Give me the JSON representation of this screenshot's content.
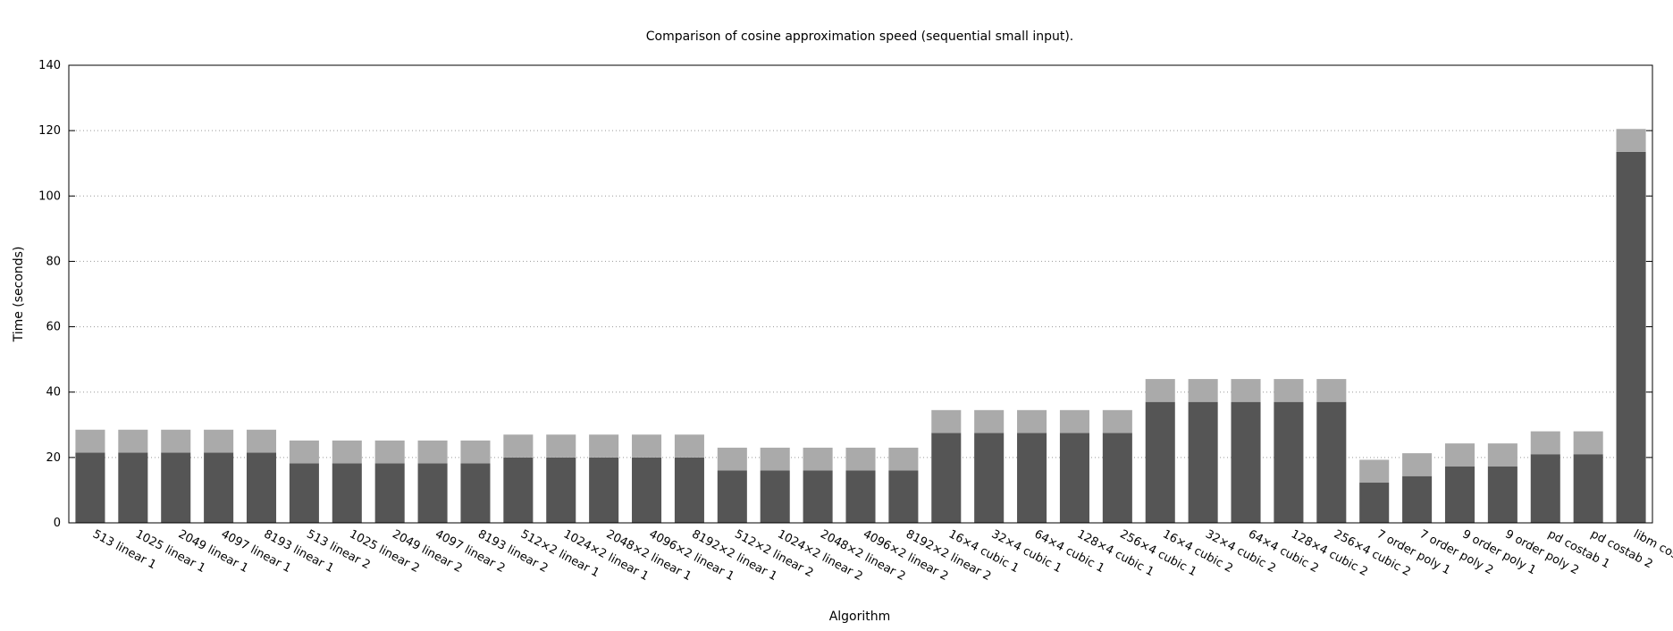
{
  "chart_data": {
    "type": "bar",
    "title": "Comparison of cosine approximation speed (sequential small input).",
    "xlabel": "Algorithm",
    "ylabel": "Time (seconds)",
    "ylim": [
      0,
      140
    ],
    "yticks": [
      0,
      20,
      40,
      60,
      80,
      100,
      120,
      140
    ],
    "grid": true,
    "stacked": true,
    "categories": [
      "513 linear 1",
      "1025 linear 1",
      "2049 linear 1",
      "4097 linear 1",
      "8193 linear 1",
      "513 linear 2",
      "1025 linear 2",
      "2049 linear 2",
      "4097 linear 2",
      "8193 linear 2",
      "512×2 linear 1",
      "1024×2 linear 1",
      "2048×2 linear 1",
      "4096×2 linear 1",
      "8192×2 linear 1",
      "512×2 linear 2",
      "1024×2 linear 2",
      "2048×2 linear 2",
      "4096×2 linear 2",
      "8192×2 linear 2",
      "16×4 cubic 1",
      "32×4 cubic 1",
      "64×4 cubic 1",
      "128×4 cubic 1",
      "256×4 cubic 1",
      "16×4 cubic 2",
      "32×4 cubic 2",
      "64×4 cubic 2",
      "128×4 cubic 2",
      "256×4 cubic 2",
      "7 order poly 1",
      "7 order poly 2",
      "9 order poly 1",
      "9 order poly 2",
      "pd costab 1",
      "pd costab 2",
      "libm cosf()"
    ],
    "series": [
      {
        "color": "#555555",
        "values": [
          21.5,
          21.5,
          21.5,
          21.5,
          21.5,
          18.2,
          18.2,
          18.2,
          18.2,
          18.2,
          20.0,
          20.0,
          20.0,
          20.0,
          20.0,
          16.0,
          16.0,
          16.0,
          16.0,
          16.0,
          27.5,
          27.5,
          27.5,
          27.5,
          27.5,
          37.0,
          37.0,
          37.0,
          37.0,
          37.0,
          12.3,
          14.3,
          17.3,
          17.3,
          21.0,
          21.0,
          113.5
        ]
      },
      {
        "color": "#aaaaaa",
        "values": [
          7.0,
          7.0,
          7.0,
          7.0,
          7.0,
          7.0,
          7.0,
          7.0,
          7.0,
          7.0,
          7.0,
          7.0,
          7.0,
          7.0,
          7.0,
          7.0,
          7.0,
          7.0,
          7.0,
          7.0,
          7.0,
          7.0,
          7.0,
          7.0,
          7.0,
          7.0,
          7.0,
          7.0,
          7.0,
          7.0,
          7.0,
          7.0,
          7.0,
          7.0,
          7.0,
          7.0,
          7.0
        ]
      }
    ]
  }
}
